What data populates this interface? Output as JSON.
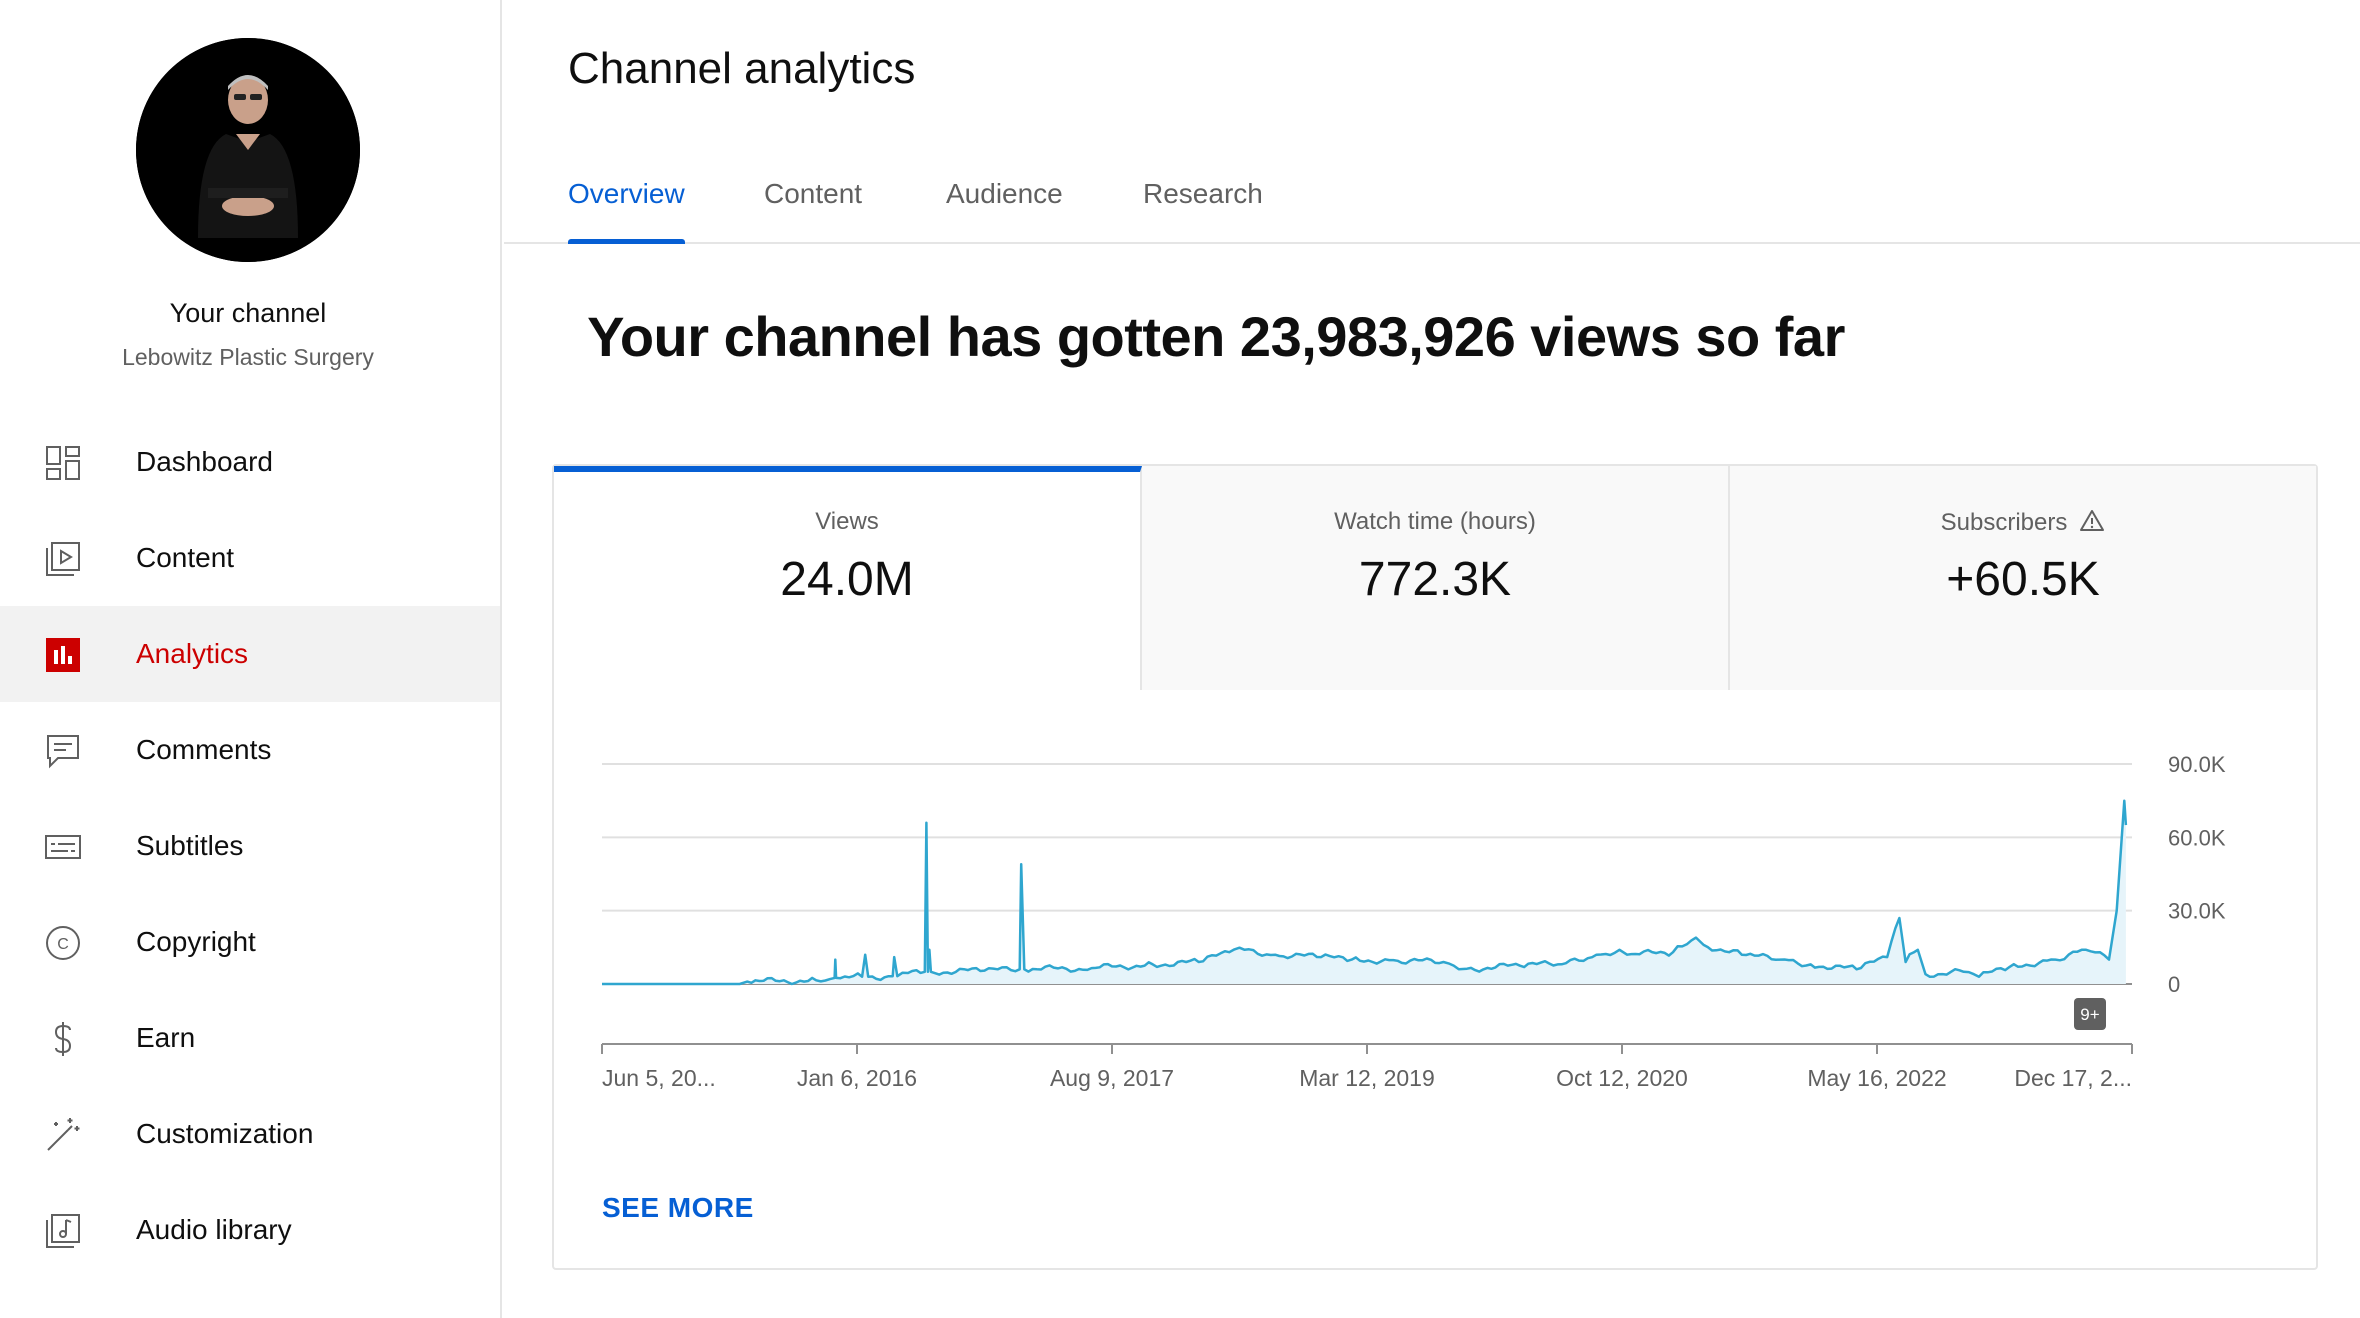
{
  "sidebar": {
    "channel_title": "Your channel",
    "channel_name": "Lebowitz Plastic Surgery",
    "items": [
      {
        "label": "Dashboard",
        "icon": "dashboard-icon",
        "active": false
      },
      {
        "label": "Content",
        "icon": "content-icon",
        "active": false
      },
      {
        "label": "Analytics",
        "icon": "analytics-icon",
        "active": true
      },
      {
        "label": "Comments",
        "icon": "comments-icon",
        "active": false
      },
      {
        "label": "Subtitles",
        "icon": "subtitles-icon",
        "active": false
      },
      {
        "label": "Copyright",
        "icon": "copyright-icon",
        "active": false
      },
      {
        "label": "Earn",
        "icon": "earn-icon",
        "active": false
      },
      {
        "label": "Customization",
        "icon": "customization-icon",
        "active": false
      },
      {
        "label": "Audio library",
        "icon": "audio-library-icon",
        "active": false
      }
    ]
  },
  "main": {
    "title": "Channel analytics",
    "tabs": [
      {
        "label": "Overview",
        "active": true
      },
      {
        "label": "Content",
        "active": false
      },
      {
        "label": "Audience",
        "active": false
      },
      {
        "label": "Research",
        "active": false
      }
    ],
    "headline": "Your channel has gotten 23,983,926 views so far",
    "metrics": [
      {
        "label": "Views",
        "value": "24.0M",
        "active": true
      },
      {
        "label": "Watch time (hours)",
        "value": "772.3K",
        "active": false
      },
      {
        "label": "Subscribers",
        "value": "+60.5K",
        "active": false,
        "warning": true
      }
    ],
    "see_more": "SEE MORE"
  },
  "colors": {
    "accent": "#065fd4",
    "active_nav": "#cc0000",
    "line": "#2fa6cf",
    "area": "#e6f4fa"
  },
  "chart_data": {
    "type": "line",
    "series": [
      {
        "name": "Views"
      }
    ],
    "x_tick_labels": [
      "Jun 5, 20...",
      "Jan 6, 2016",
      "Aug 9, 2017",
      "Mar 12, 2019",
      "Oct 12, 2020",
      "May 16, 2022",
      "Dec 17, 2..."
    ],
    "y_tick_labels": [
      "90.0K",
      "60.0K",
      "30.0K",
      "0"
    ],
    "ylim": [
      0,
      90000
    ],
    "badge": "9+",
    "points": [
      [
        0,
        0
      ],
      [
        0.09,
        0
      ],
      [
        0.095,
        1000
      ],
      [
        0.14,
        1500
      ],
      [
        0.152,
        2500
      ],
      [
        0.1525,
        10000
      ],
      [
        0.153,
        2500
      ],
      [
        0.17,
        3000
      ],
      [
        0.172,
        12000
      ],
      [
        0.174,
        3000
      ],
      [
        0.19,
        3200
      ],
      [
        0.191,
        11000
      ],
      [
        0.193,
        3200
      ],
      [
        0.2,
        4500
      ],
      [
        0.211,
        5000
      ],
      [
        0.212,
        66000
      ],
      [
        0.213,
        5000
      ],
      [
        0.214,
        14000
      ],
      [
        0.215,
        5000
      ],
      [
        0.25,
        5500
      ],
      [
        0.273,
        6000
      ],
      [
        0.274,
        49000
      ],
      [
        0.276,
        6000
      ],
      [
        0.32,
        6500
      ],
      [
        0.36,
        8000
      ],
      [
        0.39,
        9000
      ],
      [
        0.41,
        13000
      ],
      [
        0.42,
        14000
      ],
      [
        0.44,
        12000
      ],
      [
        0.47,
        11000
      ],
      [
        0.49,
        10000
      ],
      [
        0.52,
        9500
      ],
      [
        0.55,
        9000
      ],
      [
        0.56,
        6000
      ],
      [
        0.6,
        7500
      ],
      [
        0.63,
        8500
      ],
      [
        0.65,
        12000
      ],
      [
        0.665,
        14000
      ],
      [
        0.67,
        12000
      ],
      [
        0.7,
        13000
      ],
      [
        0.715,
        19000
      ],
      [
        0.72,
        16000
      ],
      [
        0.745,
        12000
      ],
      [
        0.77,
        10000
      ],
      [
        0.79,
        8000
      ],
      [
        0.82,
        6000
      ],
      [
        0.84,
        11000
      ],
      [
        0.848,
        27000
      ],
      [
        0.852,
        9000
      ],
      [
        0.86,
        14000
      ],
      [
        0.865,
        4000
      ],
      [
        0.89,
        5000
      ],
      [
        0.9,
        3000
      ],
      [
        0.92,
        7000
      ],
      [
        0.95,
        10000
      ],
      [
        0.97,
        14000
      ],
      [
        0.985,
        10000
      ],
      [
        0.99,
        30000
      ],
      [
        0.995,
        75000
      ],
      [
        0.996,
        65000
      ]
    ]
  }
}
